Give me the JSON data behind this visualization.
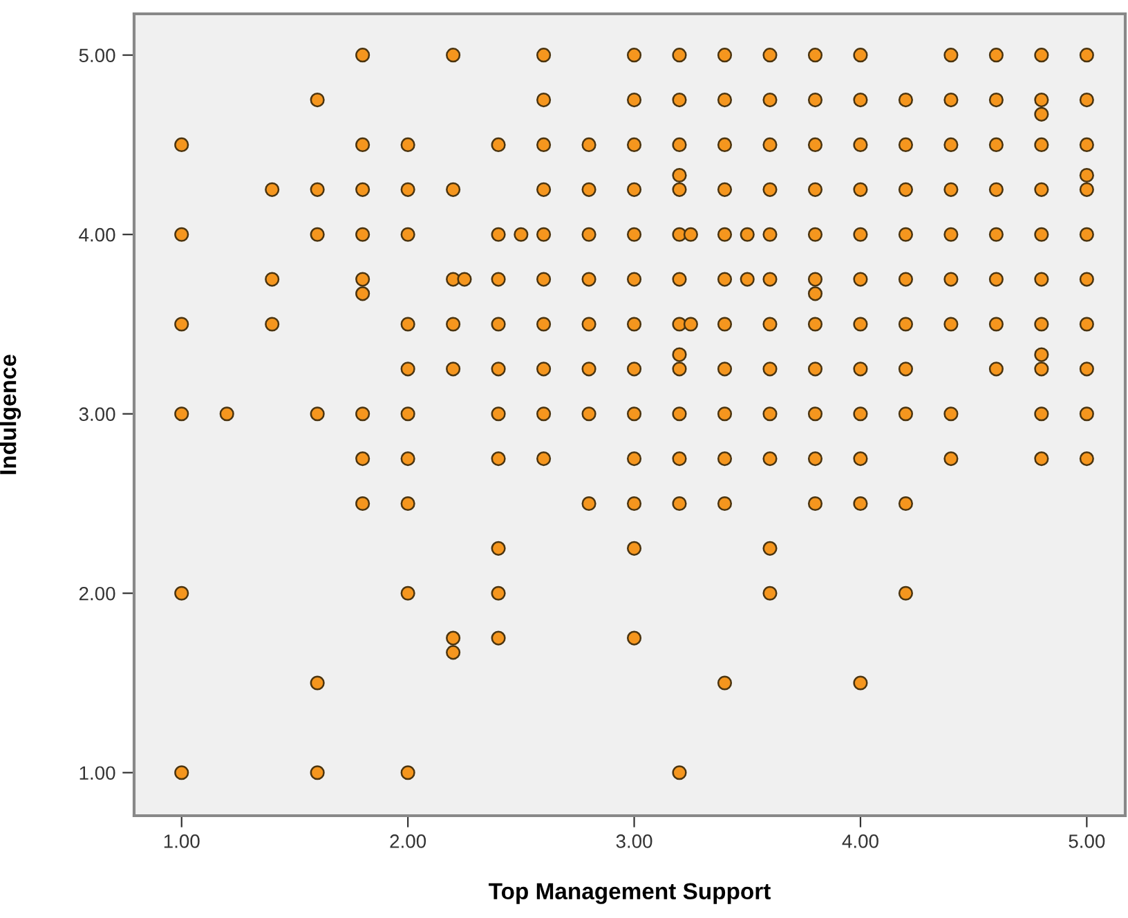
{
  "chart_data": {
    "type": "scatter",
    "xlabel": "Top Management Support",
    "ylabel": "Indulgence",
    "xlim": [
      0.79,
      5.17
    ],
    "ylim": [
      0.76,
      5.23
    ],
    "xticks": [
      {
        "value": 1,
        "label": "1.00"
      },
      {
        "value": 2,
        "label": "2.00"
      },
      {
        "value": 3,
        "label": "3.00"
      },
      {
        "value": 4,
        "label": "4.00"
      },
      {
        "value": 5,
        "label": "5.00"
      }
    ],
    "yticks": [
      {
        "value": 1,
        "label": "1.00"
      },
      {
        "value": 2,
        "label": "2.00"
      },
      {
        "value": 3,
        "label": "3.00"
      },
      {
        "value": 4,
        "label": "4.00"
      },
      {
        "value": 5,
        "label": "5.00"
      }
    ],
    "grid": false,
    "marker": "circle",
    "series": [
      {
        "color": "#f5961e",
        "x": [
          1.0,
          1.0,
          1.0,
          1.0,
          1.0,
          1.0,
          1.2,
          1.4,
          1.4,
          1.4,
          1.6,
          1.6,
          1.6,
          1.6,
          1.6,
          1.6,
          1.8,
          1.8,
          1.8,
          1.8,
          1.8,
          1.8,
          1.8,
          1.8,
          1.8,
          2.0,
          2.0,
          2.0,
          2.0,
          2.0,
          2.0,
          2.0,
          2.0,
          2.0,
          2.0,
          2.2,
          2.2,
          2.2,
          2.2,
          2.2,
          2.2,
          2.2,
          2.25,
          2.4,
          2.4,
          2.4,
          2.4,
          2.4,
          2.4,
          2.4,
          2.4,
          2.4,
          2.4,
          2.5,
          2.6,
          2.6,
          2.6,
          2.6,
          2.6,
          2.6,
          2.6,
          2.6,
          2.6,
          2.6,
          2.8,
          2.8,
          2.8,
          2.8,
          2.8,
          2.8,
          2.8,
          2.8,
          3.0,
          3.0,
          3.0,
          3.0,
          3.0,
          3.0,
          3.0,
          3.0,
          3.0,
          3.0,
          3.0,
          3.0,
          3.0,
          3.2,
          3.2,
          3.2,
          3.2,
          3.2,
          3.2,
          3.2,
          3.2,
          3.2,
          3.2,
          3.2,
          3.2,
          3.2,
          3.2,
          3.25,
          3.25,
          3.4,
          3.4,
          3.4,
          3.4,
          3.4,
          3.4,
          3.4,
          3.4,
          3.4,
          3.4,
          3.4,
          3.4,
          3.5,
          3.5,
          3.6,
          3.6,
          3.6,
          3.6,
          3.6,
          3.6,
          3.6,
          3.6,
          3.6,
          3.6,
          3.6,
          3.6,
          3.8,
          3.8,
          3.8,
          3.8,
          3.8,
          3.8,
          3.8,
          3.8,
          3.8,
          3.8,
          3.8,
          3.8,
          4.0,
          4.0,
          4.0,
          4.0,
          4.0,
          4.0,
          4.0,
          4.0,
          4.0,
          4.0,
          4.0,
          4.0,
          4.2,
          4.2,
          4.2,
          4.2,
          4.2,
          4.2,
          4.2,
          4.2,
          4.2,
          4.2,
          4.4,
          4.4,
          4.4,
          4.4,
          4.4,
          4.4,
          4.4,
          4.4,
          4.4,
          4.6,
          4.6,
          4.6,
          4.6,
          4.6,
          4.6,
          4.6,
          4.6,
          4.8,
          4.8,
          4.8,
          4.8,
          4.8,
          4.8,
          4.8,
          4.8,
          4.8,
          4.8,
          4.8,
          4.8,
          5.0,
          5.0,
          5.0,
          5.0,
          5.0,
          5.0,
          5.0,
          5.0,
          5.0,
          5.0,
          5.0
        ],
        "values": [
          4.5,
          4,
          3.5,
          3,
          2,
          1,
          3,
          4.25,
          3.75,
          3.5,
          4.75,
          4.25,
          4,
          3,
          1.5,
          1,
          5,
          4.5,
          4.25,
          4,
          3.75,
          3.67,
          3,
          2.75,
          2.5,
          4.5,
          4.25,
          4,
          3.5,
          3.25,
          3,
          2.75,
          2.5,
          2,
          1,
          5,
          4.25,
          3.75,
          3.5,
          3.25,
          1.75,
          1.67,
          3.75,
          4.5,
          4,
          3.75,
          3.5,
          3.25,
          3,
          2.75,
          2.25,
          2,
          1.75,
          4,
          5,
          4.75,
          4.5,
          4.25,
          4,
          3.75,
          3.5,
          3.25,
          3,
          2.75,
          4.5,
          4.25,
          4,
          3.75,
          3.5,
          3.25,
          3,
          2.5,
          5,
          4.75,
          4.5,
          4.25,
          4,
          3.75,
          3.5,
          3.25,
          3,
          2.75,
          2.5,
          2.25,
          1.75,
          5,
          4.75,
          4.5,
          4.33,
          4.25,
          4,
          3.75,
          3.5,
          3.33,
          3.25,
          3,
          2.75,
          2.5,
          1,
          4,
          3.5,
          5,
          4.75,
          4.5,
          4.25,
          4,
          3.75,
          3.5,
          3.25,
          3,
          2.75,
          2.5,
          1.5,
          4,
          3.75,
          5,
          4.75,
          4.5,
          4.25,
          4,
          3.75,
          3.5,
          3.25,
          3,
          2.75,
          2.25,
          2,
          5,
          4.75,
          4.5,
          4.25,
          4,
          3.75,
          3.67,
          3.5,
          3.25,
          3,
          2.75,
          2.5,
          5,
          4.75,
          4.5,
          4.25,
          4,
          3.75,
          3.5,
          3.25,
          3,
          2.75,
          2.5,
          1.5,
          4.75,
          4.5,
          4.25,
          4,
          3.75,
          3.5,
          3.25,
          3,
          2.5,
          2,
          5,
          4.75,
          4.5,
          4.25,
          4,
          3.75,
          3.5,
          3,
          2.75,
          5,
          4.75,
          4.5,
          4.25,
          4,
          3.75,
          3.5,
          3.25,
          5,
          4.75,
          4.67,
          4.5,
          4.25,
          4,
          3.75,
          3.5,
          3.33,
          3.25,
          3,
          2.75,
          5,
          4.75,
          4.5,
          4.33,
          4.25,
          4,
          3.75,
          3.5,
          3.25,
          3,
          2.75
        ]
      }
    ]
  }
}
